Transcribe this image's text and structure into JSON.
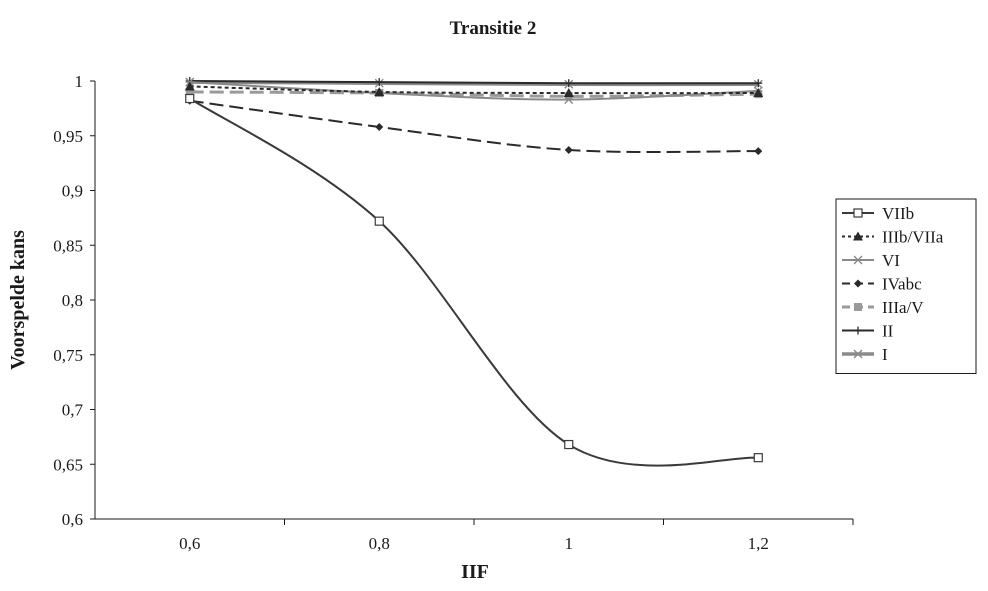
{
  "chart_data": {
    "type": "line",
    "title": "Transitie 2",
    "xlabel": "IIF",
    "ylabel": "Voorspelde kans",
    "x": [
      0.6,
      0.8,
      1.0,
      1.2
    ],
    "x_tick_labels": [
      "0,6",
      "0,8",
      "1",
      "1,2"
    ],
    "xlim": [
      0.5,
      1.3
    ],
    "ylim": [
      0.6,
      1.0
    ],
    "y_ticks": [
      0.6,
      0.65,
      0.7,
      0.75,
      0.8,
      0.85,
      0.9,
      0.95,
      1.0
    ],
    "y_tick_labels": [
      "0,6",
      "0,65",
      "0,7",
      "0,75",
      "0,8",
      "0,85",
      "0,9",
      "0,95",
      "1"
    ],
    "grid": false,
    "legend_position": "right",
    "series": [
      {
        "name": "VIIb",
        "values": [
          0.984,
          0.872,
          0.668,
          0.656
        ],
        "color": "#3a3a3a",
        "dash": "solid",
        "marker": "open-square",
        "width": 2
      },
      {
        "name": "IIIb/VIIa",
        "values": [
          0.995,
          0.99,
          0.989,
          0.989
        ],
        "color": "#2a2a2a",
        "dash": "dotted",
        "marker": "triangle",
        "width": 2
      },
      {
        "name": "VI",
        "values": [
          0.999,
          0.989,
          0.983,
          0.991
        ],
        "color": "#8a8a8a",
        "dash": "solid",
        "marker": "asterisk",
        "width": 2
      },
      {
        "name": "IVabc",
        "values": [
          0.982,
          0.958,
          0.937,
          0.936
        ],
        "color": "#2a2a2a",
        "dash": "dashed",
        "marker": "diamond",
        "width": 2
      },
      {
        "name": "IIIa/V",
        "values": [
          0.99,
          0.989,
          0.986,
          0.988
        ],
        "color": "#9a9a9a",
        "dash": "dashed",
        "marker": "square",
        "width": 3
      },
      {
        "name": "II",
        "values": [
          1.0,
          0.999,
          0.998,
          0.998
        ],
        "color": "#2a2a2a",
        "dash": "solid",
        "marker": "plus",
        "width": 2
      },
      {
        "name": "I",
        "values": [
          0.999,
          0.998,
          0.997,
          0.997
        ],
        "color": "#8a8a8a",
        "dash": "solid",
        "marker": "cross",
        "width": 3.5
      }
    ]
  }
}
